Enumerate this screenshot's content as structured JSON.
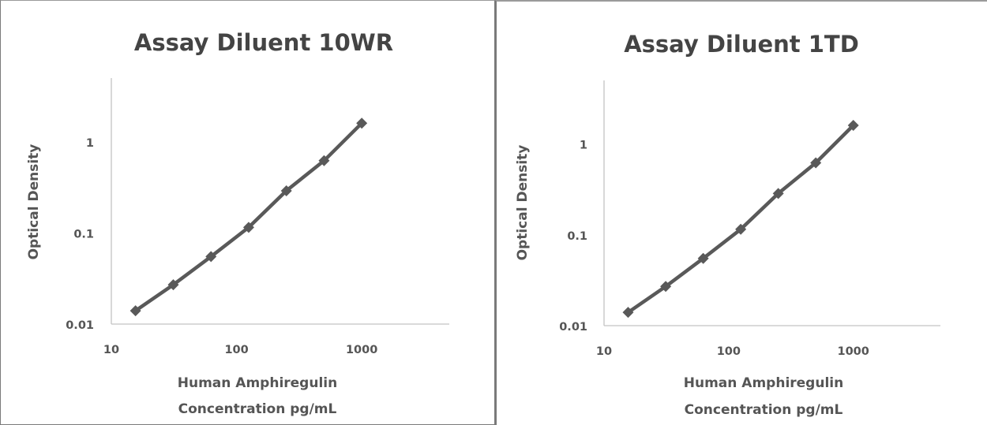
{
  "chart_data": [
    {
      "type": "line",
      "title": "Assay Diluent 10WR",
      "xlabel": [
        "Human Amphiregulin",
        "Concentration pg/mL"
      ],
      "ylabel": "Optical Density",
      "xscale": "log",
      "yscale": "log",
      "xlim": [
        10,
        5000
      ],
      "ylim": [
        0.01,
        5
      ],
      "xticks": [
        10,
        100,
        1000
      ],
      "xtick_labels": [
        "10",
        "100",
        "1000"
      ],
      "yticks": [
        0.01,
        0.1,
        1
      ],
      "ytick_labels": [
        "0.01",
        "0.1",
        "1"
      ],
      "grid": false,
      "legend": "none",
      "line_color": "#595959",
      "series": [
        {
          "x": [
            15.6,
            31.25,
            62.5,
            125,
            250,
            500,
            1000
          ],
          "y": [
            0.014,
            0.027,
            0.055,
            0.115,
            0.29,
            0.62,
            1.6
          ]
        }
      ]
    },
    {
      "type": "line",
      "title": "Assay Diluent 1TD",
      "xlabel": [
        "Human Amphiregulin",
        "Concentration pg/mL"
      ],
      "ylabel": "Optical Density",
      "xscale": "log",
      "yscale": "log",
      "xlim": [
        10,
        5000
      ],
      "ylim": [
        0.01,
        5
      ],
      "xticks": [
        10,
        100,
        1000
      ],
      "xtick_labels": [
        "10",
        "100",
        "1000"
      ],
      "yticks": [
        0.01,
        0.1,
        1
      ],
      "ytick_labels": [
        "0.01",
        "0.1",
        "1"
      ],
      "grid": false,
      "legend": "none",
      "line_color": "#595959",
      "series": [
        {
          "x": [
            15.6,
            31.25,
            62.5,
            125,
            250,
            500,
            1000
          ],
          "y": [
            0.014,
            0.027,
            0.055,
            0.115,
            0.285,
            0.62,
            1.6
          ]
        }
      ]
    }
  ]
}
